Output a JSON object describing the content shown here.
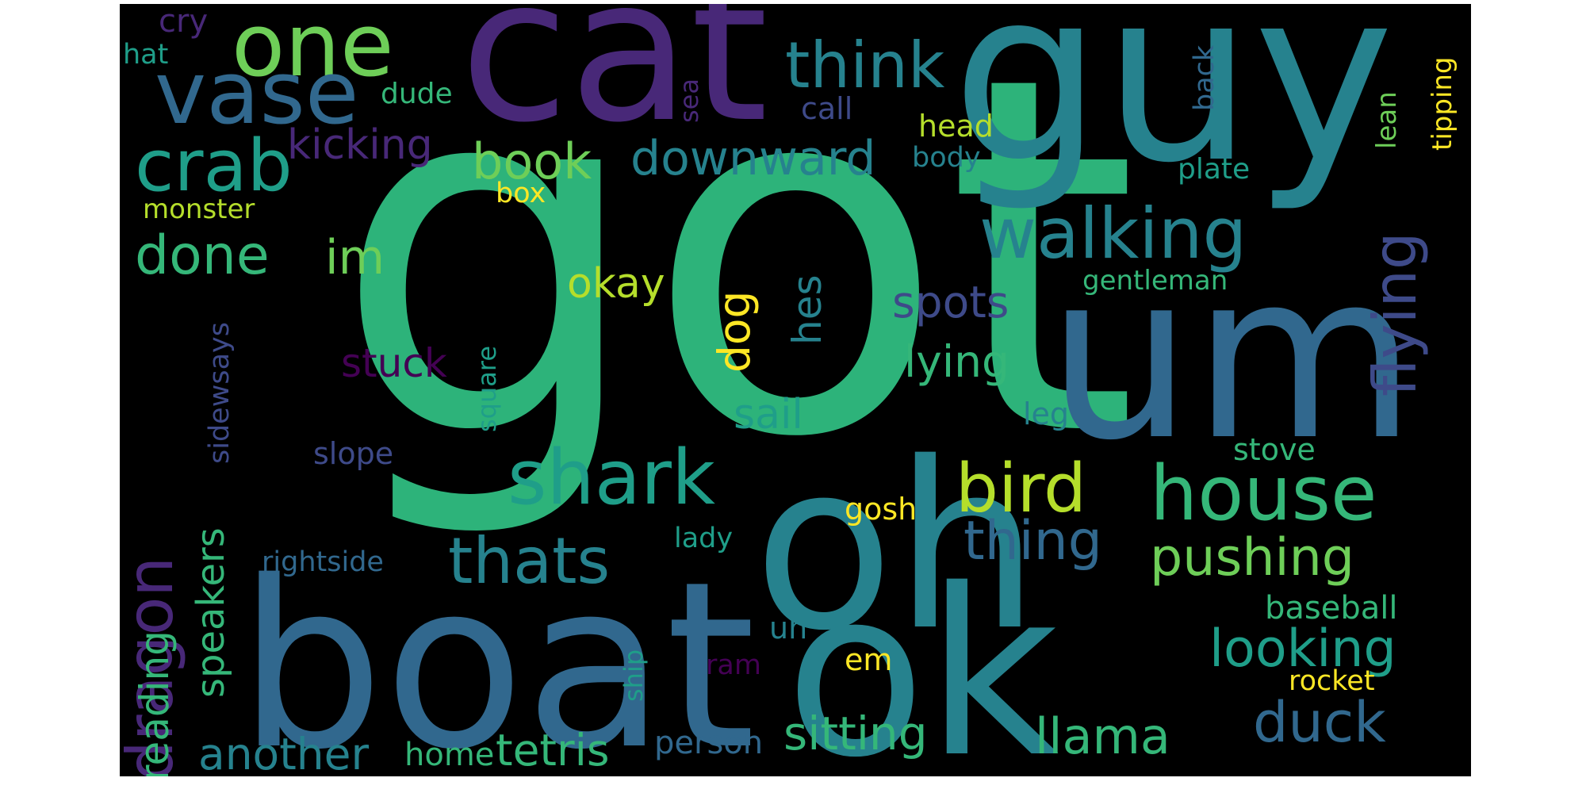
{
  "cloud": {
    "background": "#000000",
    "palette": [
      "#440154",
      "#482878",
      "#3e4a89",
      "#31688e",
      "#26828e",
      "#1f9e89",
      "#35b779",
      "#6ece58",
      "#b5de2b",
      "#fde725"
    ],
    "words": [
      {
        "text": "got",
        "color": "#2db37a"
      },
      {
        "text": "guy",
        "color": "#26828e"
      },
      {
        "text": "cat",
        "color": "#482878"
      },
      {
        "text": "um",
        "color": "#31688e"
      },
      {
        "text": "oh",
        "color": "#26828e"
      },
      {
        "text": "boat",
        "color": "#31688e"
      },
      {
        "text": "ok",
        "color": "#26828e"
      },
      {
        "text": "one",
        "color": "#6ece58"
      },
      {
        "text": "vase",
        "color": "#31688e"
      },
      {
        "text": "think",
        "color": "#26828e"
      },
      {
        "text": "walking",
        "color": "#26828e"
      },
      {
        "text": "crab",
        "color": "#1f9e89"
      },
      {
        "text": "kicking",
        "color": "#482878"
      },
      {
        "text": "book",
        "color": "#6ece58"
      },
      {
        "text": "downward",
        "color": "#26828e"
      },
      {
        "text": "flying",
        "color": "#3e4a89"
      },
      {
        "text": "done",
        "color": "#35b779"
      },
      {
        "text": "im",
        "color": "#6ece58"
      },
      {
        "text": "okay",
        "color": "#b5de2b"
      },
      {
        "text": "dog",
        "color": "#fde725"
      },
      {
        "text": "hes",
        "color": "#26828e"
      },
      {
        "text": "spots",
        "color": "#3e4a89"
      },
      {
        "text": "lying",
        "color": "#35b779"
      },
      {
        "text": "dragon",
        "color": "#482878"
      },
      {
        "text": "stuck",
        "color": "#440154"
      },
      {
        "text": "sail",
        "color": "#1f9e89"
      },
      {
        "text": "shark",
        "color": "#1f9e89"
      },
      {
        "text": "bird",
        "color": "#b5de2b"
      },
      {
        "text": "house",
        "color": "#35b779"
      },
      {
        "text": "thats",
        "color": "#26828e"
      },
      {
        "text": "thing",
        "color": "#31688e"
      },
      {
        "text": "pushing",
        "color": "#6ece58"
      },
      {
        "text": "reading",
        "color": "#35b779"
      },
      {
        "text": "speakers",
        "color": "#35b779"
      },
      {
        "text": "sidewsays",
        "color": "#3e4a89"
      },
      {
        "text": "slope",
        "color": "#3e4a89"
      },
      {
        "text": "square",
        "color": "#1f9e89"
      },
      {
        "text": "gosh",
        "color": "#fde725"
      },
      {
        "text": "lady",
        "color": "#1f9e89"
      },
      {
        "text": "rightside",
        "color": "#31688e"
      },
      {
        "text": "looking",
        "color": "#1f9e89"
      },
      {
        "text": "baseball",
        "color": "#35b779"
      },
      {
        "text": "stove",
        "color": "#35b779"
      },
      {
        "text": "duck",
        "color": "#31688e"
      },
      {
        "text": "rocket",
        "color": "#fde725"
      },
      {
        "text": "em",
        "color": "#fde725"
      },
      {
        "text": "uh",
        "color": "#26828e"
      },
      {
        "text": "ram",
        "color": "#440154"
      },
      {
        "text": "ship",
        "color": "#1f9e89"
      },
      {
        "text": "another",
        "color": "#26828e"
      },
      {
        "text": "home",
        "color": "#35b779"
      },
      {
        "text": "tetris",
        "color": "#35b779"
      },
      {
        "text": "person",
        "color": "#31688e"
      },
      {
        "text": "sitting",
        "color": "#35b779"
      },
      {
        "text": "llama",
        "color": "#35b779"
      },
      {
        "text": "cry",
        "color": "#482878"
      },
      {
        "text": "hat",
        "color": "#1f9e89"
      },
      {
        "text": "dude",
        "color": "#35b779"
      },
      {
        "text": "sea",
        "color": "#482878"
      },
      {
        "text": "call",
        "color": "#3e4a89"
      },
      {
        "text": "back",
        "color": "#31688e"
      },
      {
        "text": "head",
        "color": "#b5de2b"
      },
      {
        "text": "body",
        "color": "#26828e"
      },
      {
        "text": "plate",
        "color": "#1f9e89"
      },
      {
        "text": "lean",
        "color": "#6ece58"
      },
      {
        "text": "tipping",
        "color": "#fde725"
      },
      {
        "text": "box",
        "color": "#fde725"
      },
      {
        "text": "monster",
        "color": "#b5de2b"
      },
      {
        "text": "gentleman",
        "color": "#35b779"
      },
      {
        "text": "leg",
        "color": "#26828e"
      }
    ]
  }
}
